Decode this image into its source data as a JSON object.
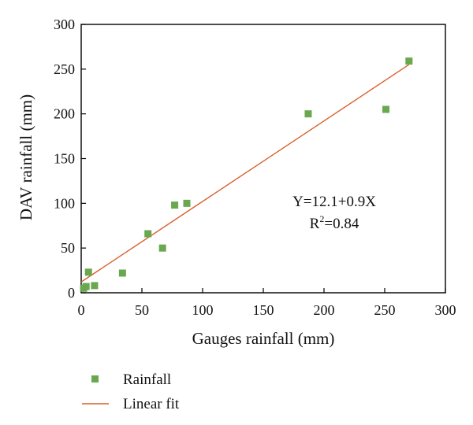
{
  "chart_data": {
    "type": "scatter",
    "xlabel": "Gauges rainfall (mm)",
    "ylabel": "DAV rainfall (mm)",
    "xlim": [
      0,
      300
    ],
    "ylim": [
      0,
      300
    ],
    "xticks": [
      0,
      50,
      100,
      150,
      200,
      250,
      300
    ],
    "yticks": [
      0,
      50,
      100,
      150,
      200,
      250,
      300
    ],
    "grid": false,
    "legend_position": "bottom-left",
    "series": [
      {
        "name": "Rainfall",
        "kind": "points",
        "color": "#6aa84f",
        "marker": "square",
        "x": [
          2,
          4,
          6,
          11,
          34,
          55,
          67,
          77,
          87,
          187,
          251,
          270
        ],
        "y": [
          5,
          7,
          23,
          8,
          22,
          66,
          50,
          98,
          100,
          200,
          205,
          259
        ]
      },
      {
        "name": "Linear fit",
        "kind": "line",
        "color": "#d95f2b",
        "intercept": 12.1,
        "slope": 0.9,
        "x_range": [
          0,
          270
        ]
      }
    ],
    "annotations": {
      "equation": "Y=12.1+0.9X",
      "r2_prefix": "R",
      "r2_sup": "2",
      "r2_suffix": "=0.84"
    }
  }
}
